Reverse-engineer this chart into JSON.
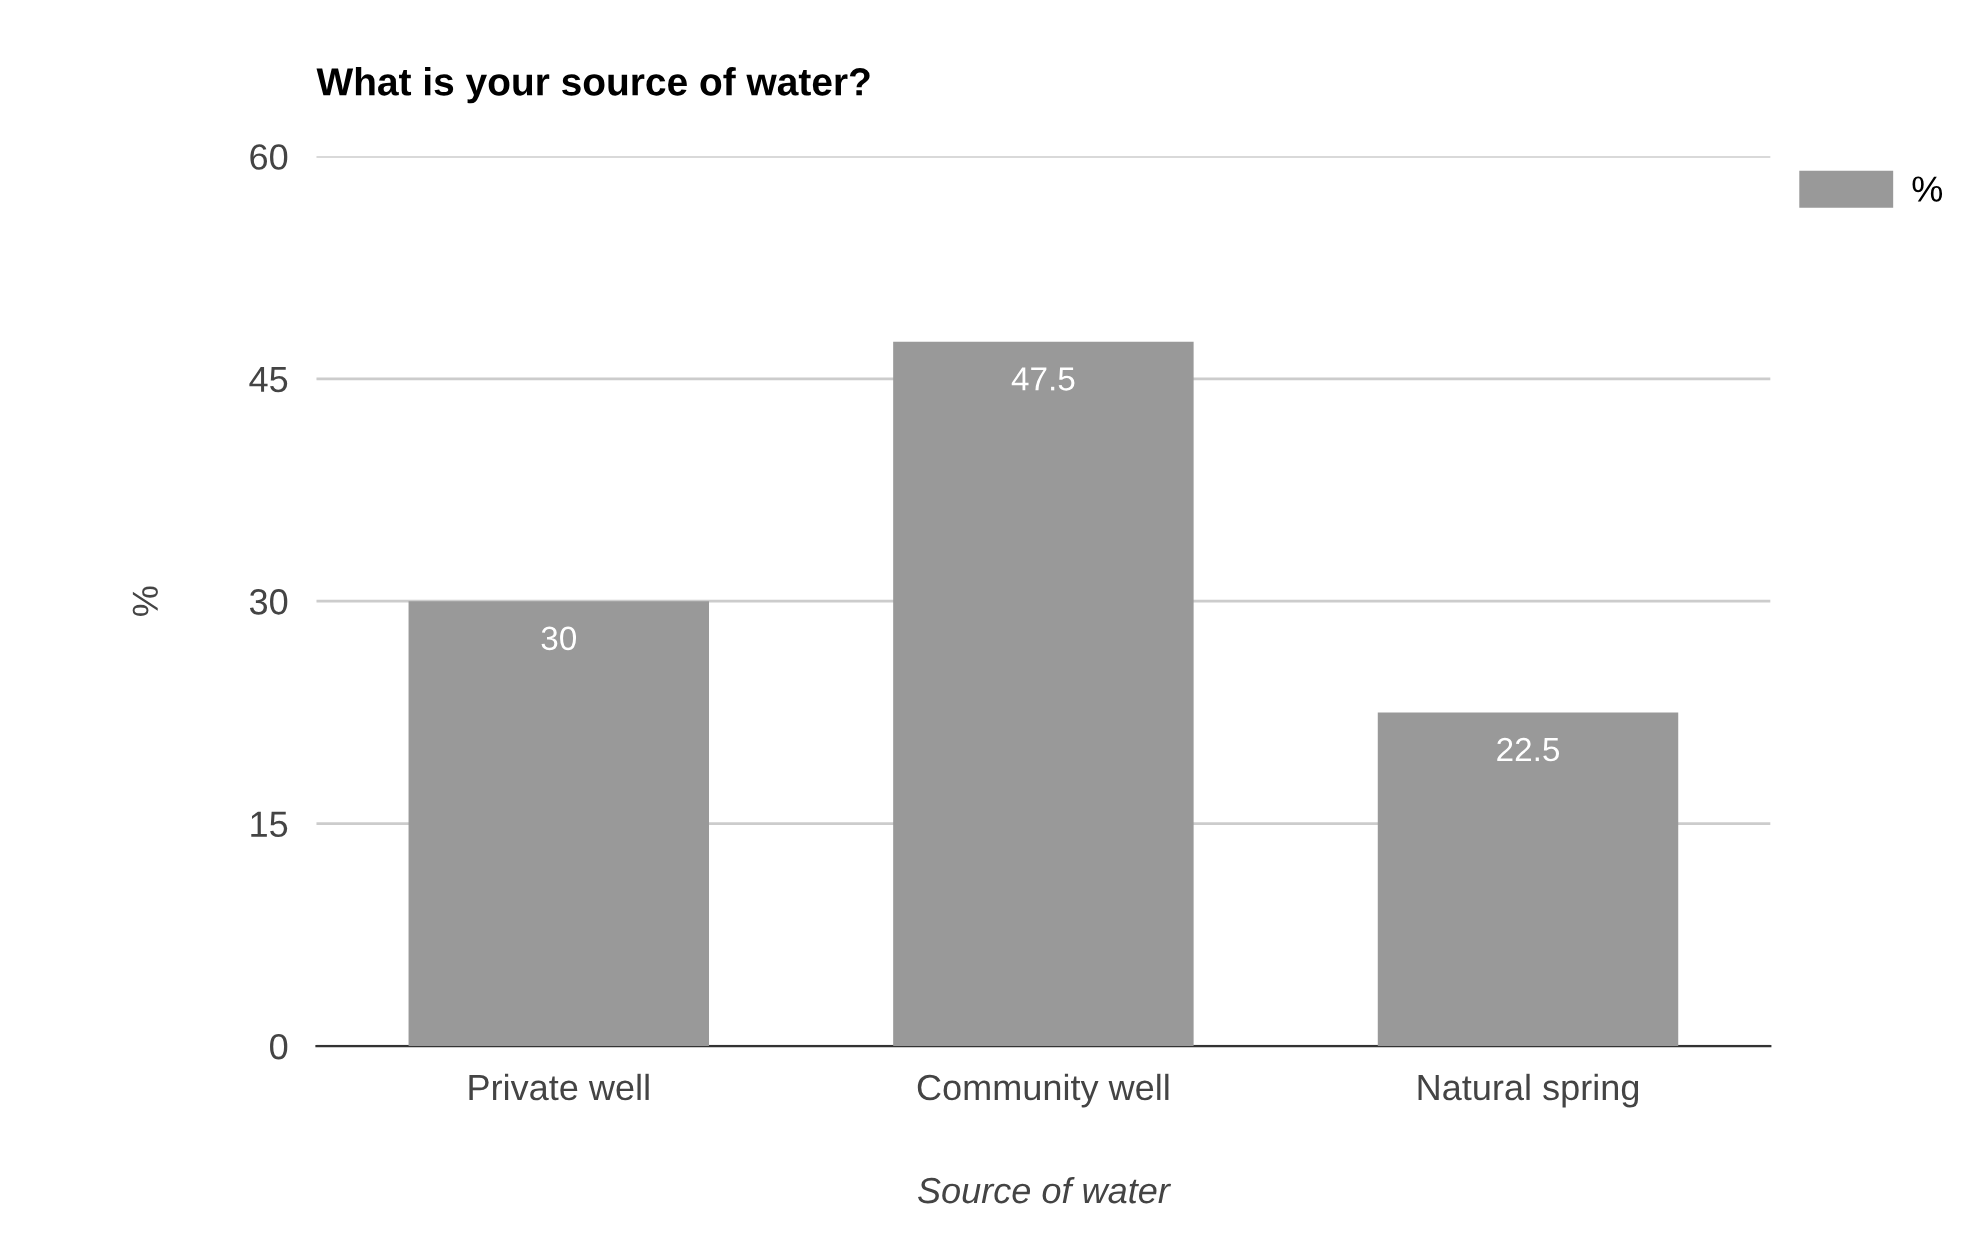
{
  "chart_data": {
    "type": "bar",
    "title": "What is your source of water?",
    "xlabel": "Source of water",
    "ylabel": "%",
    "categories": [
      "Private well",
      "Community well",
      "Natural spring"
    ],
    "series": [
      {
        "name": "%",
        "color": "#999999",
        "values": [
          30,
          47.5,
          22.5
        ]
      }
    ],
    "ylim": [
      0,
      60
    ],
    "yticks": [
      0,
      15,
      30,
      45,
      60
    ],
    "grid": "y",
    "legend": "top right",
    "data_labels": true
  }
}
